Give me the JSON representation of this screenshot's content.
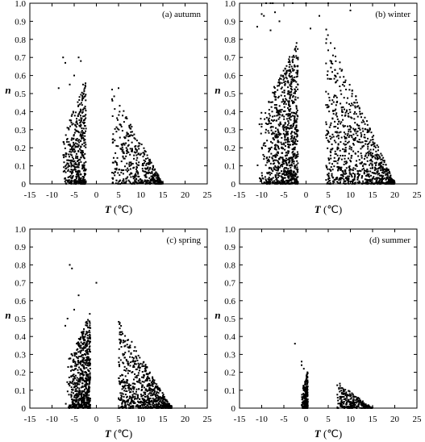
{
  "chart_data": [
    {
      "type": "scatter",
      "title": "(a) autumn",
      "xlabel_var": "T",
      "xlabel_unit": " (℃)",
      "ylabel": "n",
      "xlim": [
        -15,
        25
      ],
      "ylim": [
        0,
        1.0
      ],
      "xticks": [
        -15,
        -10,
        -5,
        0,
        5,
        10,
        15,
        20,
        25
      ],
      "yticks": [
        0,
        0.1,
        0.2,
        0.3,
        0.4,
        0.5,
        0.6,
        0.7,
        0.8,
        0.9,
        1.0
      ],
      "yticklabels": [
        "0",
        "0.1",
        "0.2",
        "0.3",
        "0.4",
        "0.5",
        "0.6",
        "0.7",
        "0.8",
        "0.9",
        "1.0"
      ],
      "point_cloud": {
        "xmin": -8,
        "xpeak": 0,
        "xmax": 15,
        "ymax": 0.7,
        "count": 900
      },
      "outliers": [
        [
          -7.5,
          0.7
        ],
        [
          -7,
          0.67
        ],
        [
          -4,
          0.7
        ],
        [
          -3.5,
          0.68
        ],
        [
          -5,
          0.6
        ],
        [
          -3,
          0.55
        ],
        [
          5,
          0.53
        ],
        [
          -8.5,
          0.53
        ],
        [
          -6,
          0.55
        ]
      ]
    },
    {
      "type": "scatter",
      "title": "(b) winter",
      "xlabel_var": "T",
      "xlabel_unit": " (℃)",
      "ylabel": "n",
      "xlim": [
        -15,
        25
      ],
      "ylim": [
        0,
        1.0
      ],
      "xticks": [
        -15,
        -10,
        -5,
        0,
        5,
        10,
        15,
        20,
        25
      ],
      "yticks": [
        0,
        0.1,
        0.2,
        0.3,
        0.4,
        0.5,
        0.6,
        0.7,
        0.8,
        0.9,
        1.0
      ],
      "yticklabels": [
        "0",
        "0.1",
        "0.2",
        "0.3",
        "0.4",
        "0.5",
        "0.6",
        "0.7",
        "0.8",
        "0.9",
        "1.0"
      ],
      "point_cloud": {
        "xmin": -11,
        "xpeak": 2,
        "xmax": 20,
        "ymax": 1.0,
        "count": 1800
      },
      "outliers": [
        [
          -9,
          1.0
        ],
        [
          -8,
          1.0
        ],
        [
          -7.5,
          1.0
        ],
        [
          -3,
          1.0
        ],
        [
          0,
          1.0
        ],
        [
          5,
          1.0
        ],
        [
          -10,
          0.94
        ],
        [
          -9.5,
          0.93
        ],
        [
          -7,
          0.95
        ],
        [
          -6,
          0.9
        ],
        [
          3,
          0.93
        ],
        [
          10,
          0.96
        ],
        [
          -11,
          0.87
        ],
        [
          -8,
          0.85
        ],
        [
          1,
          0.86
        ],
        [
          -10.5,
          0.33
        ],
        [
          -9,
          0.3
        ]
      ]
    },
    {
      "type": "scatter",
      "title": "(c) spring",
      "xlabel_var": "T",
      "xlabel_unit": " (℃)",
      "ylabel": "n",
      "xlim": [
        -15,
        25
      ],
      "ylim": [
        0,
        1.0
      ],
      "xticks": [
        -15,
        -10,
        -5,
        0,
        5,
        10,
        15,
        20,
        25
      ],
      "yticks": [
        0,
        0.1,
        0.2,
        0.3,
        0.4,
        0.5,
        0.6,
        0.7,
        0.8,
        0.9,
        1.0
      ],
      "yticklabels": [
        "0",
        "0.1",
        "0.2",
        "0.3",
        "0.4",
        "0.5",
        "0.6",
        "0.7",
        "0.8",
        "0.9",
        "1.0"
      ],
      "point_cloud": {
        "xmin": -7,
        "xpeak": 1,
        "xmax": 17,
        "ymax": 0.66,
        "count": 1400
      },
      "outliers": [
        [
          -6,
          0.8
        ],
        [
          -5.5,
          0.78
        ],
        [
          0,
          0.7
        ],
        [
          -4,
          0.63
        ],
        [
          -6.5,
          0.5
        ],
        [
          -7,
          0.46
        ],
        [
          -5,
          0.55
        ]
      ]
    },
    {
      "type": "scatter",
      "title": "(d) summer",
      "xlabel_var": "T",
      "xlabel_unit": " (℃)",
      "ylabel": "n",
      "xlim": [
        -15,
        25
      ],
      "ylim": [
        0,
        1.0
      ],
      "xticks": [
        -15,
        -10,
        -5,
        0,
        5,
        10,
        15,
        20,
        25
      ],
      "yticks": [
        0,
        0.1,
        0.2,
        0.3,
        0.4,
        0.5,
        0.6,
        0.7,
        0.8,
        0.9,
        1.0
      ],
      "yticklabels": [
        "0",
        "0.1",
        "0.2",
        "0.3",
        "0.4",
        "0.5",
        "0.6",
        "0.7",
        "0.8",
        "0.9",
        "1.0"
      ],
      "point_cloud": {
        "xmin": -1,
        "xpeak": 1,
        "xmax": 15,
        "ymax": 0.26,
        "count": 500
      },
      "outliers": [
        [
          -2.5,
          0.36
        ],
        [
          -1,
          0.26
        ],
        [
          -1,
          0.24
        ],
        [
          -0.5,
          0.22
        ]
      ]
    }
  ]
}
